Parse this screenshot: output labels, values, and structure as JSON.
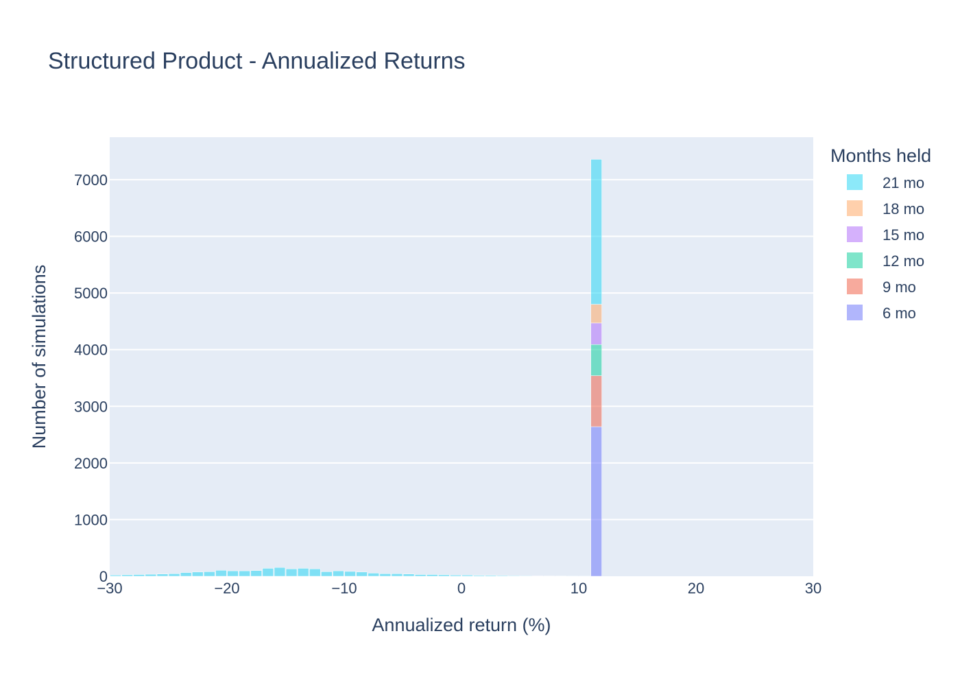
{
  "chart_data": {
    "type": "bar",
    "subtype": "stacked-histogram",
    "title": "Structured Product - Annualized Returns",
    "xlabel": "Annualized return (%)",
    "ylabel": "Number of simulations",
    "xlim": [
      -30,
      30
    ],
    "ylim": [
      0,
      7750
    ],
    "bin_width": 1,
    "xticks": [
      -30,
      -20,
      -10,
      0,
      10,
      20,
      30
    ],
    "xtick_labels": [
      "−30",
      "−20",
      "−10",
      "0",
      "10",
      "20",
      "30"
    ],
    "yticks": [
      0,
      1000,
      2000,
      3000,
      4000,
      5000,
      6000,
      7000
    ],
    "ytick_labels": [
      "0",
      "1000",
      "2000",
      "3000",
      "4000",
      "5000",
      "6000",
      "7000"
    ],
    "grid": true,
    "background": "#e5ecf6",
    "legend_title": "Months held",
    "legend_position": "right",
    "series": [
      {
        "name": "6 mo",
        "color": "#636efa",
        "points": [
          [
            11,
            2640
          ]
        ]
      },
      {
        "name": "9 mo",
        "color": "#ef553b",
        "points": [
          [
            11,
            900
          ]
        ]
      },
      {
        "name": "12 mo",
        "color": "#00cc96",
        "points": [
          [
            11,
            550
          ]
        ]
      },
      {
        "name": "15 mo",
        "color": "#ab63fa",
        "points": [
          [
            11,
            380
          ]
        ]
      },
      {
        "name": "18 mo",
        "color": "#ffa15a",
        "points": [
          [
            11,
            330
          ]
        ]
      },
      {
        "name": "21 mo",
        "color": "#19d3f3",
        "points": [
          [
            -30,
            20
          ],
          [
            -29,
            25
          ],
          [
            -28,
            30
          ],
          [
            -27,
            35
          ],
          [
            -26,
            40
          ],
          [
            -25,
            45
          ],
          [
            -24,
            65
          ],
          [
            -23,
            75
          ],
          [
            -22,
            80
          ],
          [
            -21,
            105
          ],
          [
            -20,
            95
          ],
          [
            -19,
            95
          ],
          [
            -18,
            100
          ],
          [
            -17,
            140
          ],
          [
            -16,
            155
          ],
          [
            -15,
            130
          ],
          [
            -14,
            140
          ],
          [
            -13,
            130
          ],
          [
            -12,
            80
          ],
          [
            -11,
            95
          ],
          [
            -10,
            85
          ],
          [
            -9,
            75
          ],
          [
            -8,
            55
          ],
          [
            -7,
            45
          ],
          [
            -6,
            45
          ],
          [
            -5,
            40
          ],
          [
            -4,
            30
          ],
          [
            -3,
            30
          ],
          [
            -2,
            25
          ],
          [
            -1,
            20
          ],
          [
            0,
            20
          ],
          [
            1,
            15
          ],
          [
            2,
            15
          ],
          [
            3,
            12
          ],
          [
            4,
            10
          ],
          [
            5,
            8
          ],
          [
            6,
            5
          ],
          [
            7,
            4
          ],
          [
            8,
            3
          ],
          [
            9,
            2
          ],
          [
            10,
            2
          ],
          [
            11,
            2560
          ]
        ]
      }
    ],
    "legend_order": [
      "21 mo",
      "18 mo",
      "15 mo",
      "12 mo",
      "9 mo",
      "6 mo"
    ]
  }
}
